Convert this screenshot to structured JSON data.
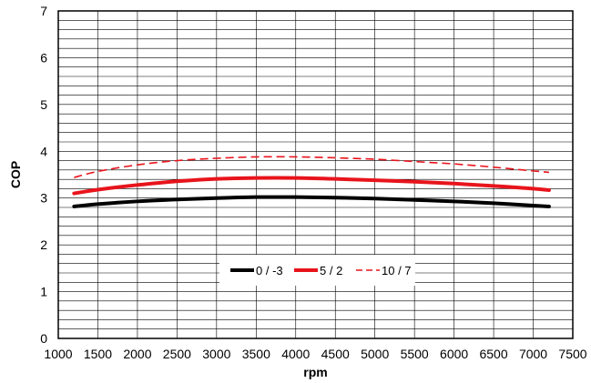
{
  "chart_data": {
    "type": "line",
    "title": "",
    "xlabel": "rpm",
    "ylabel": "COP",
    "xlim": [
      1000,
      7500
    ],
    "ylim": [
      0,
      7
    ],
    "x_major_ticks": [
      1000,
      1500,
      2000,
      2500,
      3000,
      3500,
      4000,
      4500,
      5000,
      5500,
      6000,
      6500,
      7000,
      7500
    ],
    "y_major_ticks": [
      0,
      1,
      2,
      3,
      4,
      5,
      6,
      7
    ],
    "y_minor_step": 0.2,
    "grid": true,
    "legend_position": "lower-center",
    "series": [
      {
        "name": "0 / -3",
        "color": "#000000",
        "style": "solid",
        "x": [
          1200,
          1500,
          2000,
          2500,
          3000,
          3500,
          4000,
          4500,
          5000,
          5500,
          6000,
          6500,
          7000,
          7200
        ],
        "y": [
          2.82,
          2.87,
          2.93,
          2.97,
          3.0,
          3.02,
          3.02,
          3.01,
          2.99,
          2.96,
          2.93,
          2.89,
          2.84,
          2.82
        ]
      },
      {
        "name": "5 / 2",
        "color": "#e8141c",
        "style": "solid",
        "x": [
          1200,
          1500,
          2000,
          2500,
          3000,
          3500,
          4000,
          4500,
          5000,
          5500,
          6000,
          6500,
          7000,
          7200
        ],
        "y": [
          3.1,
          3.18,
          3.28,
          3.36,
          3.41,
          3.43,
          3.43,
          3.41,
          3.38,
          3.35,
          3.31,
          3.26,
          3.2,
          3.17
        ]
      },
      {
        "name": "10 / 7",
        "color": "#e8141c",
        "style": "dashed",
        "x": [
          1200,
          1500,
          2000,
          2500,
          3000,
          3500,
          4000,
          4500,
          5000,
          5500,
          6000,
          6500,
          7000,
          7200
        ],
        "y": [
          3.44,
          3.57,
          3.71,
          3.8,
          3.85,
          3.88,
          3.88,
          3.86,
          3.83,
          3.78,
          3.73,
          3.66,
          3.58,
          3.55
        ]
      }
    ]
  }
}
